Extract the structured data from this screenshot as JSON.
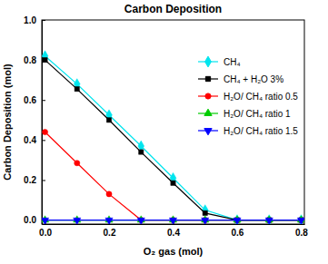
{
  "chart_data": {
    "type": "line",
    "title": "Carbon Deposition",
    "x_label": "O₂ gas (mol)",
    "y_label": "Carbon Deposition (mol)",
    "x": [
      0.0,
      0.1,
      0.2,
      0.3,
      0.4,
      0.5,
      0.6,
      0.7,
      0.8
    ],
    "xlim": [
      -0.01,
      0.81
    ],
    "ylim": [
      -0.02,
      1.0
    ],
    "xticks": [
      {
        "value": 0.0,
        "label": "0.0"
      },
      {
        "value": 0.2,
        "label": "0.2"
      },
      {
        "value": 0.4,
        "label": "0.4"
      },
      {
        "value": 0.6,
        "label": "0.6"
      },
      {
        "value": 0.8,
        "label": "0.8"
      }
    ],
    "yticks": [
      {
        "value": 0.0,
        "label": "0.0"
      },
      {
        "value": 0.2,
        "label": "0.2"
      },
      {
        "value": 0.4,
        "label": "0.4"
      },
      {
        "value": 0.6,
        "label": "0.6"
      },
      {
        "value": 0.8,
        "label": "0.8"
      },
      {
        "value": 1.0,
        "label": "1.0"
      }
    ],
    "grid": false,
    "legend": "upper right",
    "series": [
      {
        "name": "CH₄",
        "color": "#00e5ee",
        "marker": "diamond",
        "line_style": "solid",
        "values": [
          0.82,
          0.68,
          0.525,
          0.37,
          0.21,
          0.05,
          0.0,
          0.0,
          0.0
        ]
      },
      {
        "name": "CH₄ + H₂O 3%",
        "color": "#000000",
        "marker": "square",
        "line_style": "solid",
        "values": [
          0.8,
          0.655,
          0.5,
          0.34,
          0.185,
          0.035,
          0.0,
          0.0,
          0.0
        ]
      },
      {
        "name": "H₂O/ CH₄ ratio 0.5",
        "color": "#ff0000",
        "marker": "circle",
        "line_style": "solid",
        "values": [
          0.44,
          0.285,
          0.13,
          0.0,
          0.0,
          0.0,
          0.0,
          0.0,
          0.0
        ]
      },
      {
        "name": "H₂O/ CH₄ ratio 1",
        "color": "#00cc00",
        "marker": "triangle-up",
        "line_style": "solid",
        "values": [
          0.0,
          0.0,
          0.0,
          0.0,
          0.0,
          0.0,
          0.0,
          0.0,
          0.0
        ]
      },
      {
        "name": "H₂O/ CH₄ ratio 1.5",
        "color": "#0000ff",
        "marker": "triangle-down",
        "line_style": "solid",
        "values": [
          0.0,
          0.0,
          0.0,
          0.0,
          0.0,
          0.0,
          0.0,
          0.0,
          0.0
        ]
      }
    ]
  }
}
